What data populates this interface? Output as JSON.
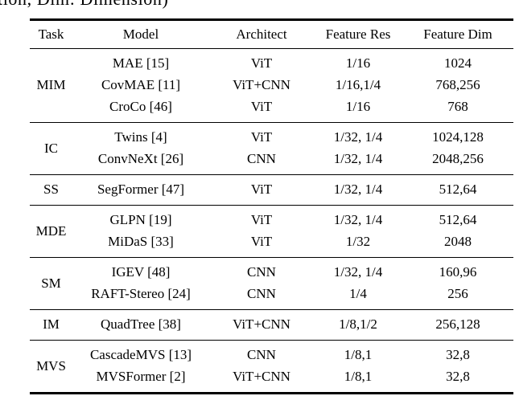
{
  "caption_fragment": "tion, Dim: Dimension)",
  "colors": {
    "text": "#000000",
    "background": "#ffffff",
    "rule": "#000000"
  },
  "table": {
    "headers": [
      "Task",
      "Model",
      "Architect",
      "Feature Res",
      "Feature Dim"
    ],
    "groups": [
      {
        "task": "MIM",
        "rows": [
          {
            "model": "MAE [15]",
            "architect": "ViT",
            "feature_res": "1/16",
            "feature_dim": "1024"
          },
          {
            "model": "CovMAE [11]",
            "architect": "ViT+CNN",
            "feature_res": "1/16,1/4",
            "feature_dim": "768,256"
          },
          {
            "model": "CroCo [46]",
            "architect": "ViT",
            "feature_res": "1/16",
            "feature_dim": "768"
          }
        ]
      },
      {
        "task": "IC",
        "rows": [
          {
            "model": "Twins [4]",
            "architect": "ViT",
            "feature_res": "1/32, 1/4",
            "feature_dim": "1024,128"
          },
          {
            "model": "ConvNeXt [26]",
            "architect": "CNN",
            "feature_res": "1/32, 1/4",
            "feature_dim": "2048,256"
          }
        ]
      },
      {
        "task": "SS",
        "rows": [
          {
            "model": "SegFormer [47]",
            "architect": "ViT",
            "feature_res": "1/32, 1/4",
            "feature_dim": "512,64"
          }
        ]
      },
      {
        "task": "MDE",
        "rows": [
          {
            "model": "GLPN [19]",
            "architect": "ViT",
            "feature_res": "1/32, 1/4",
            "feature_dim": "512,64"
          },
          {
            "model": "MiDaS [33]",
            "architect": "ViT",
            "feature_res": "1/32",
            "feature_dim": "2048"
          }
        ]
      },
      {
        "task": "SM",
        "rows": [
          {
            "model": "IGEV [48]",
            "architect": "CNN",
            "feature_res": "1/32, 1/4",
            "feature_dim": "160,96"
          },
          {
            "model": "RAFT-Stereo [24]",
            "architect": "CNN",
            "feature_res": "1/4",
            "feature_dim": "256"
          }
        ]
      },
      {
        "task": "IM",
        "rows": [
          {
            "model": "QuadTree [38]",
            "architect": "ViT+CNN",
            "feature_res": "1/8,1/2",
            "feature_dim": "256,128"
          }
        ]
      },
      {
        "task": "MVS",
        "rows": [
          {
            "model": "CascadeMVS [13]",
            "architect": "CNN",
            "feature_res": "1/8,1",
            "feature_dim": "32,8"
          },
          {
            "model": "MVSFormer [2]",
            "architect": "ViT+CNN",
            "feature_res": "1/8,1",
            "feature_dim": "32,8"
          }
        ]
      }
    ]
  }
}
